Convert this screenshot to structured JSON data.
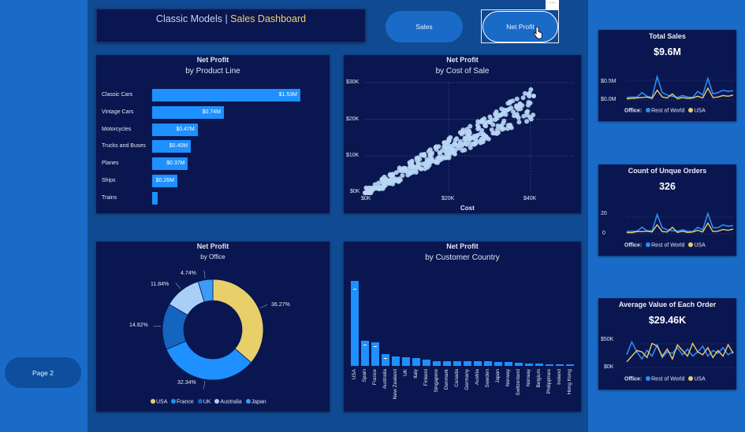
{
  "header": {
    "title_main": "Classic Models | ",
    "title_accent": "Sales Dashboard"
  },
  "nav": {
    "sales_label": "Sales",
    "net_profit_label": "Net Profit",
    "page2_label": "Page 2",
    "more_label": "···"
  },
  "colors": {
    "canvas": "#0f4a92",
    "panel": "#0a1650",
    "accent": "#f0d36b",
    "bar": "#1e90ff",
    "scatter": "#b8d6f5",
    "usa": "#e8cf6a",
    "france": "#1e90ff",
    "uk": "#1565c0",
    "australia": "#a9cff7",
    "japan": "#3a9cf5",
    "rest_of_world": "#2f8cf0"
  },
  "product_line": {
    "title": "Net Profit",
    "subtitle": "by Product Line",
    "bars": [
      {
        "label": "Classic Cars",
        "value": 1.53,
        "text": "$1.53M"
      },
      {
        "label": "Vintage Cars",
        "value": 0.74,
        "text": "$0.74M"
      },
      {
        "label": "Motorcycles",
        "value": 0.47,
        "text": "$0.47M"
      },
      {
        "label": "Trucks and Buses",
        "value": 0.4,
        "text": "$0.40M"
      },
      {
        "label": "Planes",
        "value": 0.37,
        "text": "$0.37M"
      },
      {
        "label": "Ships",
        "value": 0.26,
        "text": "$0.26M"
      },
      {
        "label": "Trains",
        "value": 0.03,
        "text": ""
      }
    ]
  },
  "scatter": {
    "title": "Net Profit",
    "subtitle": "by Cost of Sale",
    "xlabel": "Cost",
    "yticks": [
      "$30K",
      "$20K",
      "$10K",
      "$0K"
    ],
    "xticks": [
      "$0K",
      "$20K",
      "$40K"
    ]
  },
  "office": {
    "title": "Net Profit",
    "subtitle": "by Office",
    "slices": [
      {
        "name": "USA",
        "pct": 36.27,
        "label": "36.27%"
      },
      {
        "name": "France",
        "pct": 32.34,
        "label": "32.34%"
      },
      {
        "name": "UK",
        "pct": 14.82,
        "label": "14.82%"
      },
      {
        "name": "Australia",
        "pct": 11.84,
        "label": "11.84%"
      },
      {
        "name": "Japan",
        "pct": 4.74,
        "label": "4.74%"
      }
    ],
    "legend": [
      "USA",
      "France",
      "UK",
      "Australia",
      "Japan"
    ]
  },
  "country": {
    "title": "Net Profit",
    "subtitle": "by Customer Country",
    "countries": [
      "USA",
      "Spain",
      "France",
      "Australia",
      "New Zealand",
      "UK",
      "Italy",
      "Finland",
      "Singapore",
      "Denmark",
      "Canada",
      "Germany",
      "Austria",
      "Sweden",
      "Japan",
      "Norway",
      "Switzerland",
      "Norway",
      "Belgium",
      "Philippines",
      "Ireland",
      "Hong Kong"
    ],
    "values": [
      100,
      30,
      28,
      14,
      11,
      10,
      9,
      7,
      6,
      6,
      6,
      6,
      6,
      6,
      5,
      5,
      4,
      3,
      3,
      2,
      2,
      2
    ]
  },
  "kpi_sales": {
    "title": "Total Sales",
    "value": "$9.6M",
    "yticks": [
      "$0.5M",
      "$0.0M"
    ],
    "legend_label": "Office:",
    "legend": [
      "Rest of World",
      "USA"
    ]
  },
  "kpi_orders": {
    "title": "Count of Unque Orders",
    "value": "326",
    "yticks": [
      "20",
      "0"
    ],
    "legend_label": "Office:",
    "legend": [
      "Rest of World",
      "USA"
    ]
  },
  "kpi_avg": {
    "title": "Average Value of Each Order",
    "value": "$29.46K",
    "yticks": [
      "$50K",
      "$0K"
    ],
    "legend_label": "Office:",
    "legend": [
      "Rest of World",
      "USA"
    ]
  }
}
